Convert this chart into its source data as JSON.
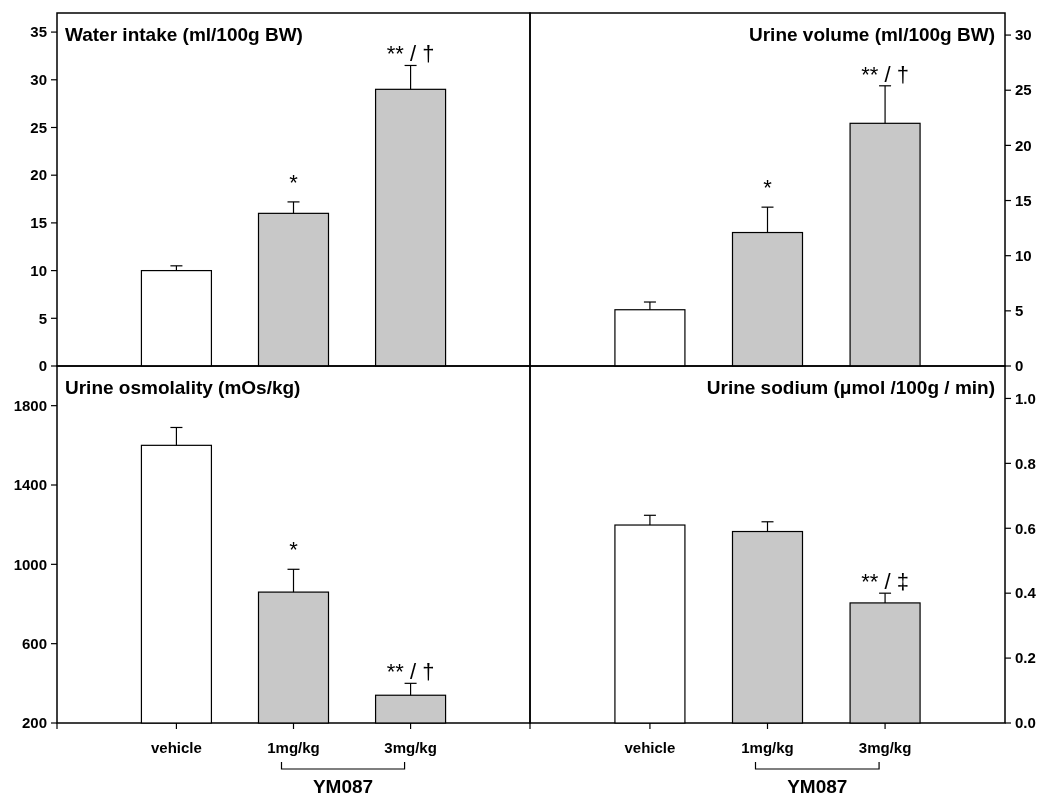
{
  "chart_data": [
    {
      "type": "bar",
      "title": "Water intake (ml/100g BW)",
      "categories": [
        "vehicle",
        "1mg/kg",
        "3mg/kg"
      ],
      "values": [
        10,
        16,
        29
      ],
      "errors": [
        0.5,
        1.2,
        2.5
      ],
      "colors": [
        "#ffffff",
        "#c8c8c8",
        "#c8c8c8"
      ],
      "ylim": [
        0,
        37
      ],
      "yticks": [
        0,
        5,
        10,
        15,
        20,
        25,
        30,
        35
      ],
      "tick_labels": "y",
      "annotations": [
        {
          "text": "*",
          "x": "1mg/kg",
          "y": 16
        },
        {
          "text": "** / †",
          "x": "3mg/kg",
          "y": 29
        }
      ]
    },
    {
      "type": "bar",
      "title": "Urine volume (ml/100g BW)",
      "categories": [
        "vehicle",
        "1mg/kg",
        "3mg/kg"
      ],
      "values": [
        5.1,
        12.1,
        22
      ],
      "errors": [
        0.7,
        2.3,
        3.4
      ],
      "colors": [
        "#ffffff",
        "#c8c8c8",
        "#c8c8c8"
      ],
      "ylim": [
        0,
        32
      ],
      "yticks": [
        0,
        5,
        10,
        15,
        20,
        25,
        30
      ],
      "tick_labels": "y",
      "annotations": [
        {
          "text": "*",
          "x": "1mg/kg",
          "y": 12.1
        },
        {
          "text": "** / †",
          "x": "3mg/kg",
          "y": 22
        }
      ]
    },
    {
      "type": "bar",
      "title": "Urine osmolality (mOs/kg)",
      "categories": [
        "vehicle",
        "1mg/kg",
        "3mg/kg"
      ],
      "values": [
        1600,
        860,
        340
      ],
      "errors": [
        90,
        115,
        60
      ],
      "colors": [
        "#ffffff",
        "#c8c8c8",
        "#c8c8c8"
      ],
      "ylim": [
        200,
        2000
      ],
      "yticks": [
        200,
        600,
        1000,
        1400,
        1800
      ],
      "annotations": [
        {
          "text": "*",
          "x": "1mg/kg",
          "y": 860
        },
        {
          "text": "** / †",
          "x": "3mg/kg",
          "y": 340
        },
        "YM087"
      ]
    },
    {
      "type": "bar",
      "title": "Urine sodium (μmol /100g / min)",
      "categories": [
        "vehicle",
        "1mg/kg",
        "3mg/kg"
      ],
      "values": [
        0.61,
        0.59,
        0.37
      ],
      "errors": [
        0.03,
        0.03,
        0.03
      ],
      "colors": [
        "#ffffff",
        "#c8c8c8",
        "#c8c8c8"
      ],
      "ylim": [
        0,
        1.1
      ],
      "yticks": [
        {
          "value": 0,
          "label": "0.0"
        },
        {
          "value": 0.2,
          "label": "0.2"
        },
        {
          "value": 0.4,
          "label": "0.4"
        },
        {
          "value": 0.6,
          "label": "0.6"
        },
        {
          "value": 0.8,
          "label": "0.8"
        },
        {
          "value": 1,
          "label": "1.0"
        }
      ],
      "annotations": [
        {
          "text": "** / ‡",
          "x": "3mg/kg",
          "y": 0.37
        },
        "YM087"
      ]
    }
  ]
}
